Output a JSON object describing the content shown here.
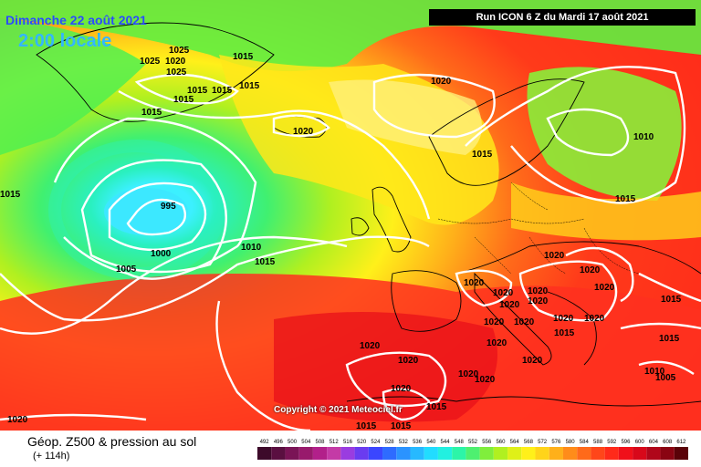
{
  "header": {
    "date": "Dimanche 22 août 2021",
    "time": "2:00 locale",
    "run": "Run ICON 6 Z du Mardi 17 août 2021"
  },
  "copyright": "Copyright © 2021 Meteociel.fr",
  "legend": {
    "title": "Géop. Z500 & pression au sol",
    "subtitle": "(+ 114h)",
    "scale_values": [
      "492",
      "496",
      "500",
      "504",
      "508",
      "512",
      "516",
      "520",
      "524",
      "528",
      "532",
      "536",
      "540",
      "544",
      "548",
      "552",
      "556",
      "560",
      "564",
      "568",
      "572",
      "576",
      "580",
      "584",
      "588",
      "592",
      "596",
      "600",
      "604",
      "608",
      "612"
    ],
    "scale_colors": [
      "#3d0a2a",
      "#5a0f40",
      "#7a1456",
      "#981a6c",
      "#b2208a",
      "#c43aa6",
      "#9a3ce0",
      "#6a3cf0",
      "#3b46ff",
      "#2e6bff",
      "#2b93ff",
      "#27b9ff",
      "#22dcff",
      "#22f0e0",
      "#2cf5a8",
      "#4ef070",
      "#80ee3c",
      "#b0f020",
      "#dff018",
      "#fff01a",
      "#ffd41a",
      "#ffb01a",
      "#ff8c1a",
      "#ff6a1a",
      "#ff461a",
      "#ff2a1a",
      "#f0101a",
      "#d8081a",
      "#b0061a",
      "#8a0412",
      "#5a0208"
    ]
  },
  "isobar_labels": [
    "1025",
    "1025",
    "1020",
    "1025",
    "1015",
    "1015",
    "1015",
    "1015",
    "1015",
    "1020",
    "1015",
    "995",
    "1000",
    "1005",
    "1010",
    "1015",
    "1020",
    "1015",
    "1010",
    "1015",
    "1020",
    "1020",
    "1020",
    "1020",
    "1020",
    "1020",
    "1020",
    "1020",
    "1020",
    "1020",
    "1020",
    "1020",
    "1015",
    "1015",
    "1020",
    "1020",
    "1020",
    "1020",
    "1020",
    "1015",
    "1015",
    "1020",
    "1020",
    "1010",
    "1005",
    "1020",
    "1015",
    "1015",
    "1015"
  ],
  "colors": {
    "isobar": "#ffffff",
    "coast": "#000000"
  }
}
